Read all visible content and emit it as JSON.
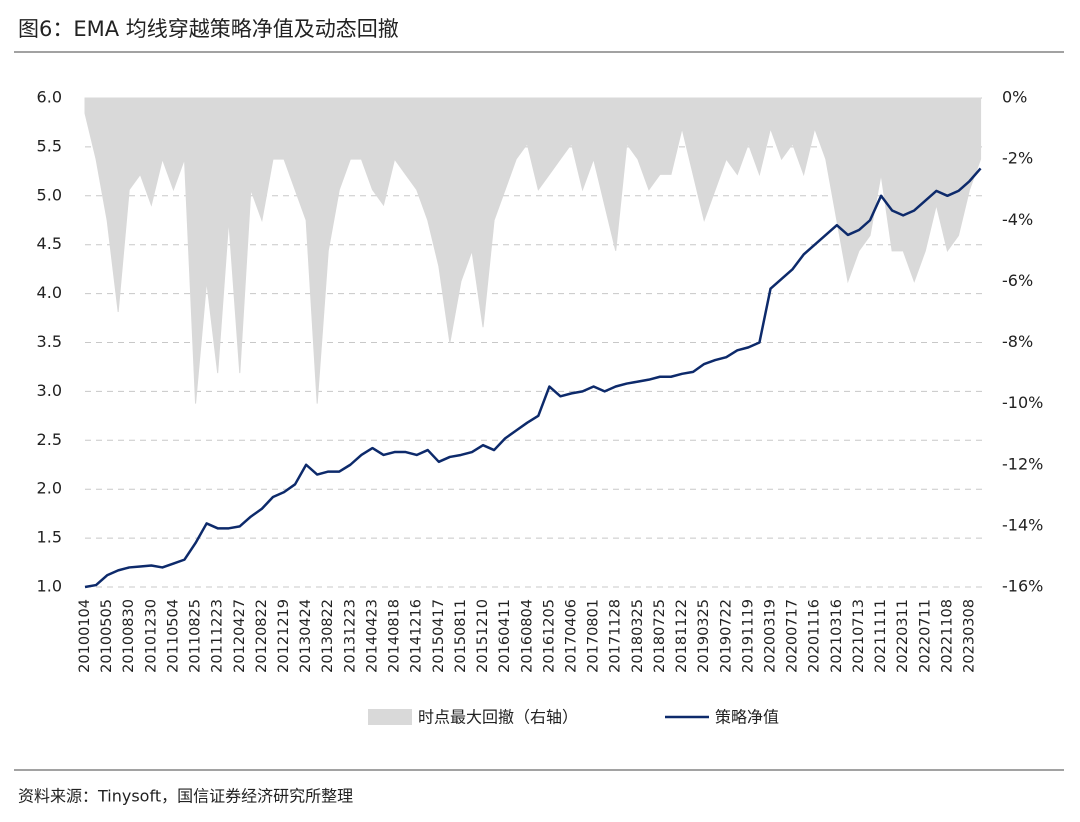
{
  "chart_data": {
    "type": "line",
    "title": "图6：EMA 均线穿越策略净值及动态回撤",
    "source": "资料来源：Tinysoft，国信证券经济研究所整理",
    "categories": [
      "20100104",
      null,
      "20100505",
      null,
      "20100830",
      null,
      "20101230",
      null,
      "20110504",
      null,
      "20110825",
      null,
      "20111223",
      null,
      "20120427",
      null,
      "20120822",
      null,
      "20121219",
      null,
      "20130424",
      null,
      "20130822",
      null,
      "20131223",
      null,
      "20140423",
      null,
      "20140818",
      null,
      "20141216",
      null,
      "20150417",
      null,
      "20150811",
      null,
      "20151210",
      null,
      "20160411",
      null,
      "20160804",
      null,
      "20161205",
      null,
      "20170406",
      null,
      "20170801",
      null,
      "20171128",
      null,
      "20180325",
      null,
      "20180725",
      null,
      "20181122",
      null,
      "20190325",
      null,
      "20190722",
      null,
      "20191119",
      null,
      "20200319",
      null,
      "20200717",
      null,
      "20201116",
      null,
      "20210316",
      null,
      "20210713",
      null,
      "20211111",
      null,
      "20220311",
      null,
      "20220711",
      null,
      "20221108",
      null,
      "20230308",
      null
    ],
    "series": [
      {
        "name": "时点最大回撤（右轴）",
        "type": "area",
        "axis": "y2",
        "color": "#d9d9d9",
        "values": [
          -0.5,
          -2,
          -4,
          -7,
          -3,
          -2.5,
          -3.5,
          -2,
          -3,
          -2,
          -10,
          -6,
          -9,
          -4,
          -9,
          -3,
          -4,
          -2,
          -2,
          -3,
          -4,
          -10,
          -5,
          -3,
          -2,
          -2,
          -3,
          -3.5,
          -2,
          -2.5,
          -3,
          -4,
          -5.5,
          -8,
          -6,
          -5,
          -7.5,
          -4,
          -3,
          -2,
          -1.5,
          -3,
          -2.5,
          -2,
          -1.5,
          -3,
          -2,
          -3.5,
          -5,
          -1.5,
          -2,
          -3,
          -2.5,
          -2.5,
          -1,
          -2.5,
          -4,
          -3,
          -2,
          -2.5,
          -1.5,
          -2.5,
          -1,
          -2,
          -1.5,
          -2.5,
          -1,
          -2,
          -4,
          -6,
          -5,
          -4.5,
          -2.5,
          -5,
          -5,
          -6,
          -5,
          -3.5,
          -5,
          -4.5,
          -3,
          -2
        ]
      },
      {
        "name": "策略净值",
        "type": "line",
        "axis": "y",
        "color": "#0d2a6b",
        "values": [
          1.0,
          1.02,
          1.12,
          1.17,
          1.2,
          1.21,
          1.22,
          1.2,
          1.24,
          1.28,
          1.45,
          1.65,
          1.6,
          1.6,
          1.62,
          1.72,
          1.8,
          1.92,
          1.97,
          2.05,
          2.25,
          2.15,
          2.18,
          2.18,
          2.25,
          2.35,
          2.42,
          2.35,
          2.38,
          2.38,
          2.35,
          2.4,
          2.28,
          2.33,
          2.35,
          2.38,
          2.45,
          2.4,
          2.52,
          2.6,
          2.68,
          2.75,
          3.05,
          2.95,
          2.98,
          3.0,
          3.05,
          3.0,
          3.05,
          3.08,
          3.1,
          3.12,
          3.15,
          3.15,
          3.18,
          3.2,
          3.28,
          3.32,
          3.35,
          3.42,
          3.45,
          3.5,
          4.05,
          4.15,
          4.25,
          4.4,
          4.5,
          4.6,
          4.7,
          4.6,
          4.65,
          4.75,
          5.0,
          4.85,
          4.8,
          4.85,
          4.95,
          5.05,
          5.0,
          5.05,
          5.15,
          5.28
        ]
      }
    ],
    "ylim": [
      1,
      6
    ],
    "yticks": [
      {
        "value": 1,
        "label": "1.0"
      },
      {
        "value": 1.5,
        "label": "1.5"
      },
      {
        "value": 2,
        "label": "2.0"
      },
      {
        "value": 2.5,
        "label": "2.5"
      },
      {
        "value": 3,
        "label": "3.0"
      },
      {
        "value": 3.5,
        "label": "3.5"
      },
      {
        "value": 4,
        "label": "4.0"
      },
      {
        "value": 4.5,
        "label": "4.5"
      },
      {
        "value": 5,
        "label": "5.0"
      },
      {
        "value": 5.5,
        "label": "5.5"
      },
      {
        "value": 6,
        "label": "6.0"
      }
    ],
    "y2lim": [
      -16,
      0
    ],
    "y2ticks": [
      {
        "value": 0,
        "label": "0%"
      },
      {
        "value": -2,
        "label": "-2%"
      },
      {
        "value": -4,
        "label": "-4%"
      },
      {
        "value": -6,
        "label": "-6%"
      },
      {
        "value": -8,
        "label": "-8%"
      },
      {
        "value": -10,
        "label": "-10%"
      },
      {
        "value": -12,
        "label": "-12%"
      },
      {
        "value": -14,
        "label": "-14%"
      },
      {
        "value": -16,
        "label": "-16%"
      }
    ],
    "grid": true,
    "legend": "bottom"
  }
}
